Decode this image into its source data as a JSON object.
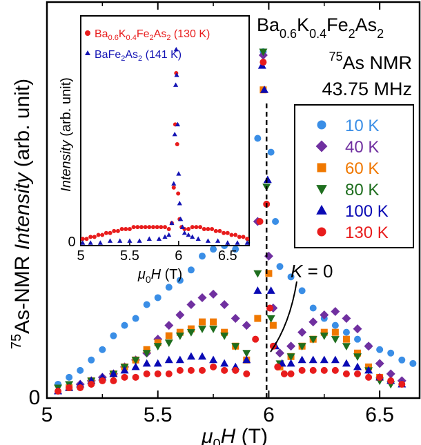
{
  "colors": {
    "10K": "#3a8ee6",
    "40K": "#7030a0",
    "60K": "#f07800",
    "80K": "#1e6e1e",
    "100K": "#0a0ab4",
    "130K": "#e81c1c",
    "inset_red": "#e81c1c",
    "inset_blue": "#1414b4"
  },
  "chart_data": [
    {
      "type": "scatter",
      "title_parts": {
        "base": "Ba",
        "s1": "0.6",
        "k": "K",
        "s2": "0.4",
        "fe": "Fe",
        "s3": "2",
        "as": "As",
        "s4": "2"
      },
      "nmr_parts": {
        "sup": "75",
        "text": "As NMR"
      },
      "freq": "43.75 MHz",
      "xlabel_parts": {
        "mu": "μ",
        "sub": "0",
        "h": "H",
        "unit": " (T)"
      },
      "ylabel_parts": {
        "sup": "75",
        "text1": "As-NMR ",
        "italic": "Intensity",
        "text2": " (arb. unit)"
      },
      "xticks": [
        "5",
        "5.5",
        "6",
        "6.5"
      ],
      "ytick": "0",
      "xlim": [
        5.0,
        6.68
      ],
      "ylim": [
        0,
        1.0
      ],
      "annotation": {
        "k": "K",
        "text": " = 0"
      },
      "k0_line_x": 5.99,
      "legend_position": "right",
      "series": [
        {
          "name": "10 K",
          "marker": "circle",
          "color_key": "10K",
          "x": [
            5.05,
            5.1,
            5.15,
            5.2,
            5.25,
            5.3,
            5.35,
            5.4,
            5.45,
            5.5,
            5.55,
            5.6,
            5.65,
            5.7,
            5.75,
            5.8,
            5.85,
            5.9,
            5.95,
            5.975,
            6.01,
            6.03,
            6.05,
            6.1,
            6.15,
            6.2,
            6.25,
            6.3,
            6.35,
            6.4,
            6.45,
            6.5,
            6.55,
            6.6,
            6.65
          ],
          "y": [
            0.03,
            0.05,
            0.07,
            0.1,
            0.13,
            0.17,
            0.2,
            0.22,
            0.26,
            0.28,
            0.31,
            0.33,
            0.36,
            0.4,
            0.42,
            0.43,
            0.42,
            0.44,
            0.74,
            0.99,
            0.7,
            0.5,
            0.37,
            0.34,
            0.3,
            0.25,
            0.22,
            0.2,
            0.18,
            0.16,
            0.14,
            0.13,
            0.12,
            0.1,
            0.09
          ]
        },
        {
          "name": "40 K",
          "marker": "diamond",
          "color_key": "40K",
          "x": [
            5.15,
            5.2,
            5.25,
            5.3,
            5.35,
            5.4,
            5.45,
            5.5,
            5.55,
            5.6,
            5.65,
            5.7,
            5.75,
            5.8,
            5.85,
            5.9,
            5.95,
            5.975,
            6.0,
            6.02,
            6.05,
            6.1,
            6.15,
            6.2,
            6.25,
            6.3,
            6.35,
            6.4,
            6.45,
            6.5,
            6.55,
            6.6
          ],
          "y": [
            0.03,
            0.04,
            0.05,
            0.06,
            0.08,
            0.1,
            0.12,
            0.16,
            0.2,
            0.23,
            0.26,
            0.28,
            0.29,
            0.26,
            0.22,
            0.2,
            0.5,
            0.98,
            0.4,
            0.25,
            0.12,
            0.14,
            0.18,
            0.21,
            0.23,
            0.24,
            0.22,
            0.19,
            0.14,
            0.09,
            0.06,
            0.04
          ]
        },
        {
          "name": "60 K",
          "marker": "square",
          "color_key": "60K",
          "x": [
            5.1,
            5.2,
            5.3,
            5.35,
            5.4,
            5.45,
            5.5,
            5.55,
            5.6,
            5.65,
            5.7,
            5.75,
            5.8,
            5.85,
            5.9,
            5.95,
            5.975,
            6.0,
            6.02,
            6.05,
            6.1,
            6.15,
            6.2,
            6.25,
            6.3,
            6.35,
            6.4,
            6.45,
            6.5
          ],
          "y": [
            0.02,
            0.04,
            0.06,
            0.08,
            0.1,
            0.13,
            0.15,
            0.17,
            0.18,
            0.19,
            0.21,
            0.21,
            0.18,
            0.14,
            0.1,
            0.22,
            0.88,
            0.35,
            0.2,
            0.08,
            0.11,
            0.14,
            0.16,
            0.18,
            0.18,
            0.16,
            0.12,
            0.08,
            0.05
          ]
        },
        {
          "name": "80 K",
          "marker": "triangle-down",
          "color_key": "80K",
          "x": [
            5.05,
            5.1,
            5.2,
            5.3,
            5.35,
            5.4,
            5.45,
            5.5,
            5.55,
            5.6,
            5.65,
            5.7,
            5.75,
            5.8,
            5.85,
            5.9,
            5.95,
            5.975,
            5.99,
            6.01,
            6.05,
            6.1,
            6.15,
            6.2,
            6.25,
            6.3,
            6.35,
            6.4,
            6.45,
            6.5,
            6.55
          ],
          "y": [
            0.02,
            0.03,
            0.04,
            0.06,
            0.08,
            0.1,
            0.12,
            0.14,
            0.15,
            0.17,
            0.18,
            0.19,
            0.19,
            0.17,
            0.14,
            0.12,
            0.35,
            0.99,
            0.6,
            0.22,
            0.09,
            0.11,
            0.14,
            0.16,
            0.17,
            0.16,
            0.14,
            0.11,
            0.07,
            0.04,
            0.03
          ]
        },
        {
          "name": "100 K",
          "marker": "triangle-up",
          "color_key": "100K",
          "x": [
            5.05,
            5.1,
            5.15,
            5.2,
            5.25,
            5.3,
            5.35,
            5.4,
            5.45,
            5.5,
            5.55,
            5.6,
            5.65,
            5.7,
            5.75,
            5.8,
            5.85,
            5.9,
            5.95,
            5.97,
            5.98,
            5.995,
            6.01,
            6.03,
            6.06,
            6.1,
            6.15,
            6.2,
            6.25,
            6.3,
            6.35,
            6.4,
            6.45,
            6.5,
            6.55,
            6.6
          ],
          "y": [
            0.01,
            0.02,
            0.03,
            0.04,
            0.05,
            0.06,
            0.07,
            0.08,
            0.09,
            0.09,
            0.1,
            0.1,
            0.11,
            0.11,
            0.1,
            0.09,
            0.08,
            0.1,
            0.3,
            0.95,
            0.88,
            0.62,
            0.3,
            0.14,
            0.09,
            0.09,
            0.1,
            0.1,
            0.1,
            0.1,
            0.09,
            0.08,
            0.07,
            0.05,
            0.04,
            0.03
          ]
        },
        {
          "name": "130 K",
          "marker": "circle",
          "color_key": "130K",
          "x": [
            5.05,
            5.1,
            5.15,
            5.2,
            5.25,
            5.3,
            5.35,
            5.4,
            5.45,
            5.5,
            5.55,
            5.6,
            5.65,
            5.7,
            5.75,
            5.8,
            5.85,
            5.9,
            5.94,
            5.96,
            5.975,
            5.99,
            6.005,
            6.02,
            6.04,
            6.07,
            6.1,
            6.15,
            6.2,
            6.25,
            6.3,
            6.35,
            6.4,
            6.45,
            6.5,
            6.55,
            6.6
          ],
          "y": [
            0.01,
            0.02,
            0.02,
            0.03,
            0.04,
            0.04,
            0.05,
            0.05,
            0.06,
            0.06,
            0.06,
            0.07,
            0.07,
            0.07,
            0.08,
            0.07,
            0.07,
            0.06,
            0.16,
            0.5,
            0.96,
            0.55,
            0.25,
            0.14,
            0.08,
            0.06,
            0.06,
            0.07,
            0.07,
            0.07,
            0.07,
            0.06,
            0.06,
            0.05,
            0.05,
            0.04,
            0.03
          ]
        }
      ]
    },
    {
      "type": "scatter",
      "xlabel_parts": {
        "mu": "μ",
        "sub": "0",
        "h": "H",
        "unit": " (T)"
      },
      "ylabel_parts": {
        "italic": "Intensity",
        "text": " (arb. unit)"
      },
      "xticks": [
        "5",
        "5.5",
        "6",
        "6.5"
      ],
      "ytick": "0",
      "xlim": [
        5.0,
        6.72
      ],
      "ylim": [
        0,
        1.0
      ],
      "legend_position": "top-left",
      "series": [
        {
          "name_parts": {
            "base": "Ba",
            "s1": "0.6",
            "k": "K",
            "s2": "0.4",
            "fe": "Fe",
            "s3": "2",
            "as": "As",
            "s4": "2",
            "tail": " (130 K)"
          },
          "marker": "circle",
          "color_key": "inset_red",
          "x": [
            5.02,
            5.06,
            5.1,
            5.14,
            5.18,
            5.22,
            5.26,
            5.3,
            5.34,
            5.38,
            5.42,
            5.46,
            5.5,
            5.54,
            5.58,
            5.62,
            5.66,
            5.7,
            5.74,
            5.78,
            5.82,
            5.86,
            5.9,
            5.93,
            5.95,
            5.965,
            5.975,
            5.985,
            5.995,
            6.01,
            6.03,
            6.06,
            6.1,
            6.14,
            6.18,
            6.22,
            6.26,
            6.3,
            6.34,
            6.38,
            6.42,
            6.46,
            6.5,
            6.54,
            6.58,
            6.62,
            6.66,
            6.7
          ],
          "y": [
            0.02,
            0.02,
            0.03,
            0.03,
            0.04,
            0.04,
            0.05,
            0.05,
            0.06,
            0.06,
            0.07,
            0.07,
            0.07,
            0.08,
            0.08,
            0.08,
            0.08,
            0.08,
            0.08,
            0.08,
            0.08,
            0.08,
            0.07,
            0.1,
            0.28,
            0.6,
            0.86,
            0.5,
            0.25,
            0.12,
            0.08,
            0.07,
            0.07,
            0.08,
            0.08,
            0.08,
            0.07,
            0.07,
            0.07,
            0.06,
            0.06,
            0.05,
            0.05,
            0.04,
            0.04,
            0.03,
            0.03,
            0.02
          ]
        },
        {
          "name_parts": {
            "base": "BaFe",
            "s1": "2",
            "as": "As",
            "s2": "2",
            "tail": " (141 K)"
          },
          "marker": "triangle-up",
          "color_key": "inset_blue",
          "x": [
            5.02,
            5.1,
            5.2,
            5.3,
            5.4,
            5.5,
            5.6,
            5.7,
            5.8,
            5.86,
            5.9,
            5.93,
            5.95,
            5.96,
            5.97,
            5.975,
            5.98,
            5.99,
            6.0,
            6.01,
            6.02,
            6.04,
            6.06,
            6.1,
            6.14,
            6.2,
            6.3,
            6.4,
            6.5,
            6.6,
            6.7
          ],
          "y": [
            0.0,
            0.0,
            0.0,
            0.01,
            0.01,
            0.01,
            0.01,
            0.02,
            0.02,
            0.03,
            0.04,
            0.1,
            0.3,
            0.55,
            0.8,
            0.98,
            0.85,
            0.6,
            0.35,
            0.2,
            0.12,
            0.08,
            0.05,
            0.04,
            0.03,
            0.02,
            0.01,
            0.01,
            0.0,
            0.0,
            0.0
          ]
        }
      ]
    }
  ]
}
